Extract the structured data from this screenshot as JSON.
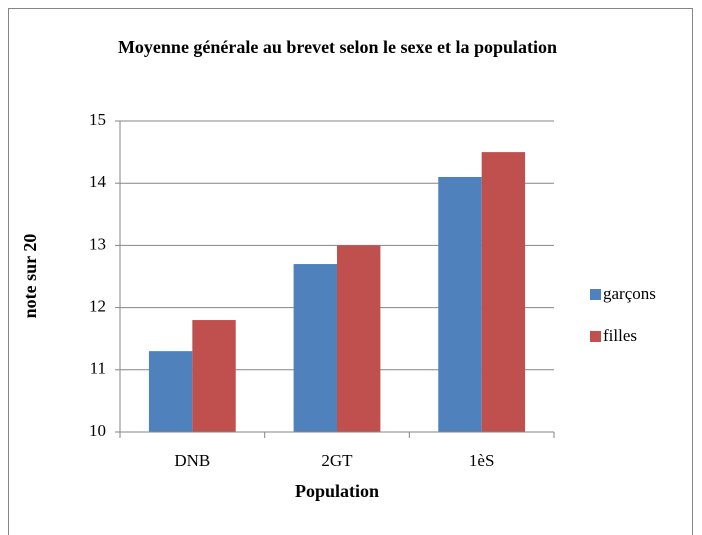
{
  "chart_data": {
    "type": "bar",
    "title": "Moyenne générale au brevet selon le sexe et la population",
    "x_label": "Population",
    "y_label": "note sur 20",
    "categories": [
      "DNB",
      "2GT",
      "1èS"
    ],
    "series": [
      {
        "name": "garçons",
        "color": "#4f81bd",
        "values": [
          11.3,
          12.7,
          14.1
        ]
      },
      {
        "name": "filles",
        "color": "#c0504d",
        "values": [
          11.8,
          13.0,
          14.5
        ]
      }
    ],
    "ylim": [
      10,
      15
    ],
    "yticks": [
      10,
      11,
      12,
      13,
      14,
      15
    ],
    "grid": true,
    "legend": "right"
  }
}
